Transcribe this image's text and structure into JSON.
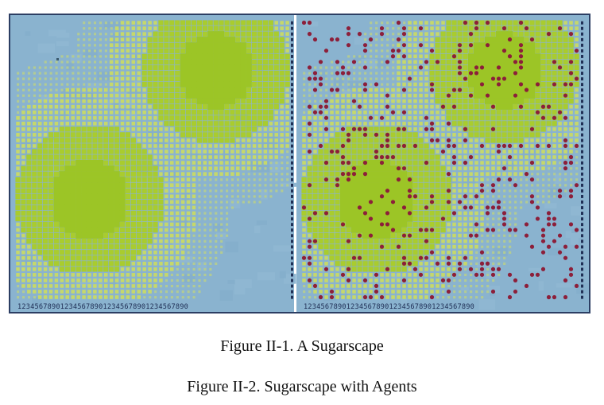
{
  "figure": {
    "panels": [
      {
        "name": "sugarscape",
        "agents": false
      },
      {
        "name": "sugarscape-with-agents",
        "agents": true
      }
    ],
    "axis_digits": "1234567890123456789012345678901234567890",
    "colors": {
      "background": "#8ab3cf",
      "frame": "#2c3e63",
      "sugar_low": "#b8cf8a",
      "sugar_mid": "#c6d86a",
      "sugar_high": "#a9cc2e",
      "sugar_peak": "#9cc526",
      "agent": "#8c1f3a",
      "axis": "#1f2f55"
    }
  },
  "captions": {
    "caption_1": "Figure II-1. A Sugarscape",
    "caption_2": "Figure II-2. Sugarscape with Agents"
  }
}
